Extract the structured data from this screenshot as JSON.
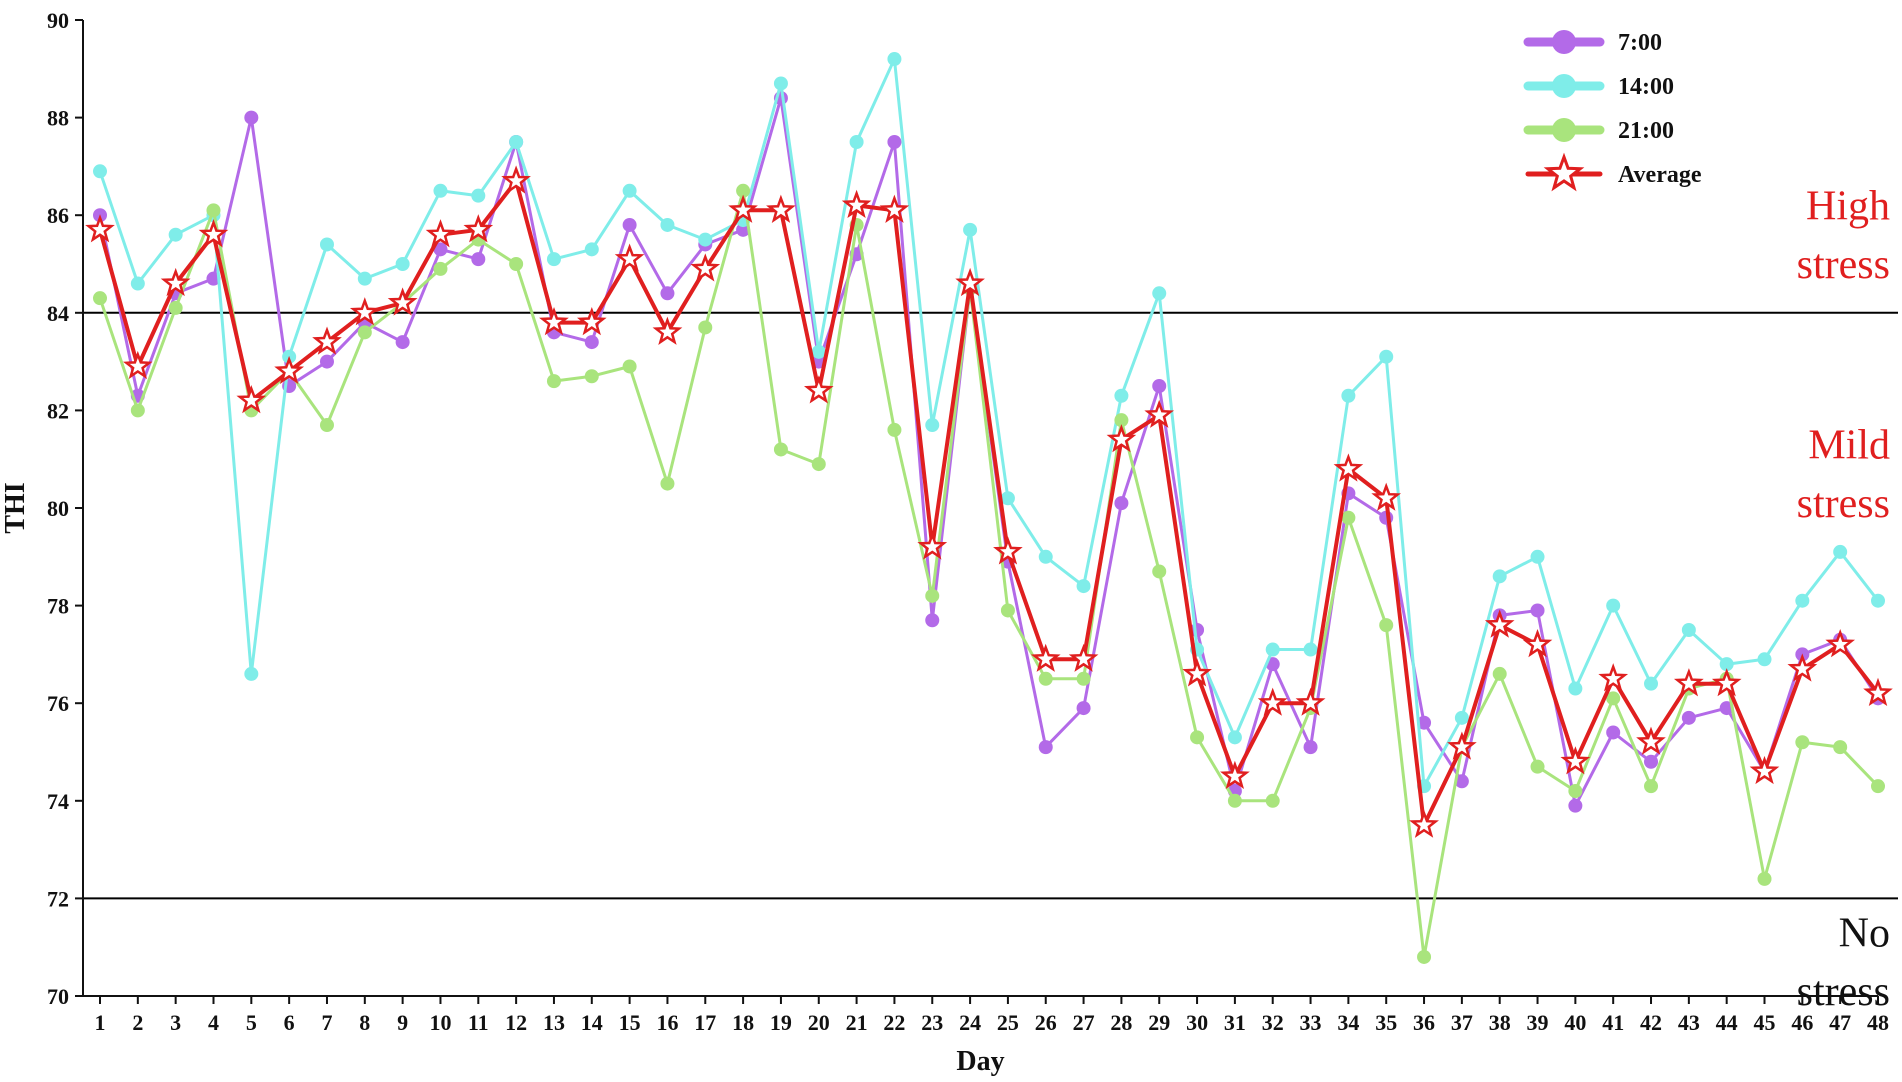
{
  "chart_data": {
    "type": "line",
    "xlabel": "Day",
    "ylabel": "THI",
    "xlim": [
      1,
      48
    ],
    "ylim": [
      70,
      90
    ],
    "yticks": [
      70,
      72,
      74,
      76,
      78,
      80,
      82,
      84,
      86,
      88,
      90
    ],
    "x": [
      1,
      2,
      3,
      4,
      5,
      6,
      7,
      8,
      9,
      10,
      11,
      12,
      13,
      14,
      15,
      16,
      17,
      18,
      19,
      20,
      21,
      22,
      23,
      24,
      25,
      26,
      27,
      28,
      29,
      30,
      31,
      32,
      33,
      34,
      35,
      36,
      37,
      38,
      39,
      40,
      41,
      42,
      43,
      44,
      45,
      46,
      47,
      48
    ],
    "series": [
      {
        "name": "7:00",
        "color": "#B36AE8",
        "marker": "circle",
        "values": [
          86.0,
          82.3,
          84.4,
          84.7,
          88.0,
          82.5,
          83.0,
          83.8,
          83.4,
          85.3,
          85.1,
          87.5,
          83.6,
          83.4,
          85.8,
          84.4,
          85.4,
          85.7,
          88.4,
          83.0,
          85.2,
          87.5,
          77.7,
          84.5,
          78.9,
          75.1,
          75.9,
          80.1,
          82.5,
          77.5,
          74.2,
          76.8,
          75.1,
          80.3,
          79.8,
          75.6,
          74.4,
          77.8,
          77.9,
          73.9,
          75.4,
          74.8,
          75.7,
          75.9,
          74.6,
          77.0,
          77.3,
          76.1
        ]
      },
      {
        "name": "14:00",
        "color": "#7FEDE9",
        "marker": "circle",
        "values": [
          86.9,
          84.6,
          85.6,
          86.0,
          76.6,
          83.1,
          85.4,
          84.7,
          85.0,
          86.5,
          86.4,
          87.5,
          85.1,
          85.3,
          86.5,
          85.8,
          85.5,
          85.9,
          88.7,
          83.2,
          87.5,
          89.2,
          81.7,
          85.7,
          80.2,
          79.0,
          78.4,
          82.3,
          84.4,
          77.1,
          75.3,
          77.1,
          77.1,
          82.3,
          83.1,
          74.3,
          75.7,
          78.6,
          79.0,
          76.3,
          78.0,
          76.4,
          77.5,
          76.8,
          76.9,
          78.1,
          79.1,
          78.1
        ]
      },
      {
        "name": "21:00",
        "color": "#A9E47D",
        "marker": "circle",
        "values": [
          84.3,
          82.0,
          84.1,
          86.1,
          82.0,
          82.8,
          81.7,
          83.6,
          84.2,
          84.9,
          85.5,
          85.0,
          82.6,
          82.7,
          82.9,
          80.5,
          83.7,
          86.5,
          81.2,
          80.9,
          85.8,
          81.6,
          78.2,
          84.5,
          77.9,
          76.5,
          76.5,
          81.8,
          78.7,
          75.3,
          74.0,
          74.0,
          75.9,
          79.8,
          77.6,
          70.8,
          75.1,
          76.6,
          74.7,
          74.2,
          76.1,
          74.3,
          76.3,
          76.5,
          72.4,
          75.2,
          75.1,
          74.3
        ]
      },
      {
        "name": "Average",
        "color": "#E01F1F",
        "marker": "star",
        "values": [
          85.7,
          82.9,
          84.6,
          85.6,
          82.2,
          82.8,
          83.4,
          84.0,
          84.2,
          85.6,
          85.7,
          86.7,
          83.8,
          83.8,
          85.1,
          83.6,
          84.9,
          86.1,
          86.1,
          82.4,
          86.2,
          86.1,
          79.2,
          84.6,
          79.1,
          76.9,
          76.9,
          81.4,
          81.9,
          76.6,
          74.5,
          76.0,
          76.0,
          80.8,
          80.2,
          73.5,
          75.1,
          77.6,
          77.2,
          74.8,
          76.5,
          75.2,
          76.4,
          76.4,
          74.6,
          76.7,
          77.2,
          76.2
        ]
      }
    ],
    "thresholds": [
      {
        "value": 84,
        "color": "#000000"
      },
      {
        "value": 72,
        "color": "#000000"
      }
    ],
    "zone_labels": [
      {
        "lines": [
          "High",
          "stress"
        ],
        "color": "#E01F1F",
        "y_values": [
          86.2,
          85.0
        ]
      },
      {
        "lines": [
          "Mild",
          "stress"
        ],
        "color": "#E01F1F",
        "y_values": [
          81.3,
          80.1
        ]
      },
      {
        "lines": [
          "No",
          "stress"
        ],
        "color": "#111111",
        "y_values": [
          71.3,
          70.1
        ]
      }
    ],
    "legend_position": "top-right",
    "grid": false
  }
}
